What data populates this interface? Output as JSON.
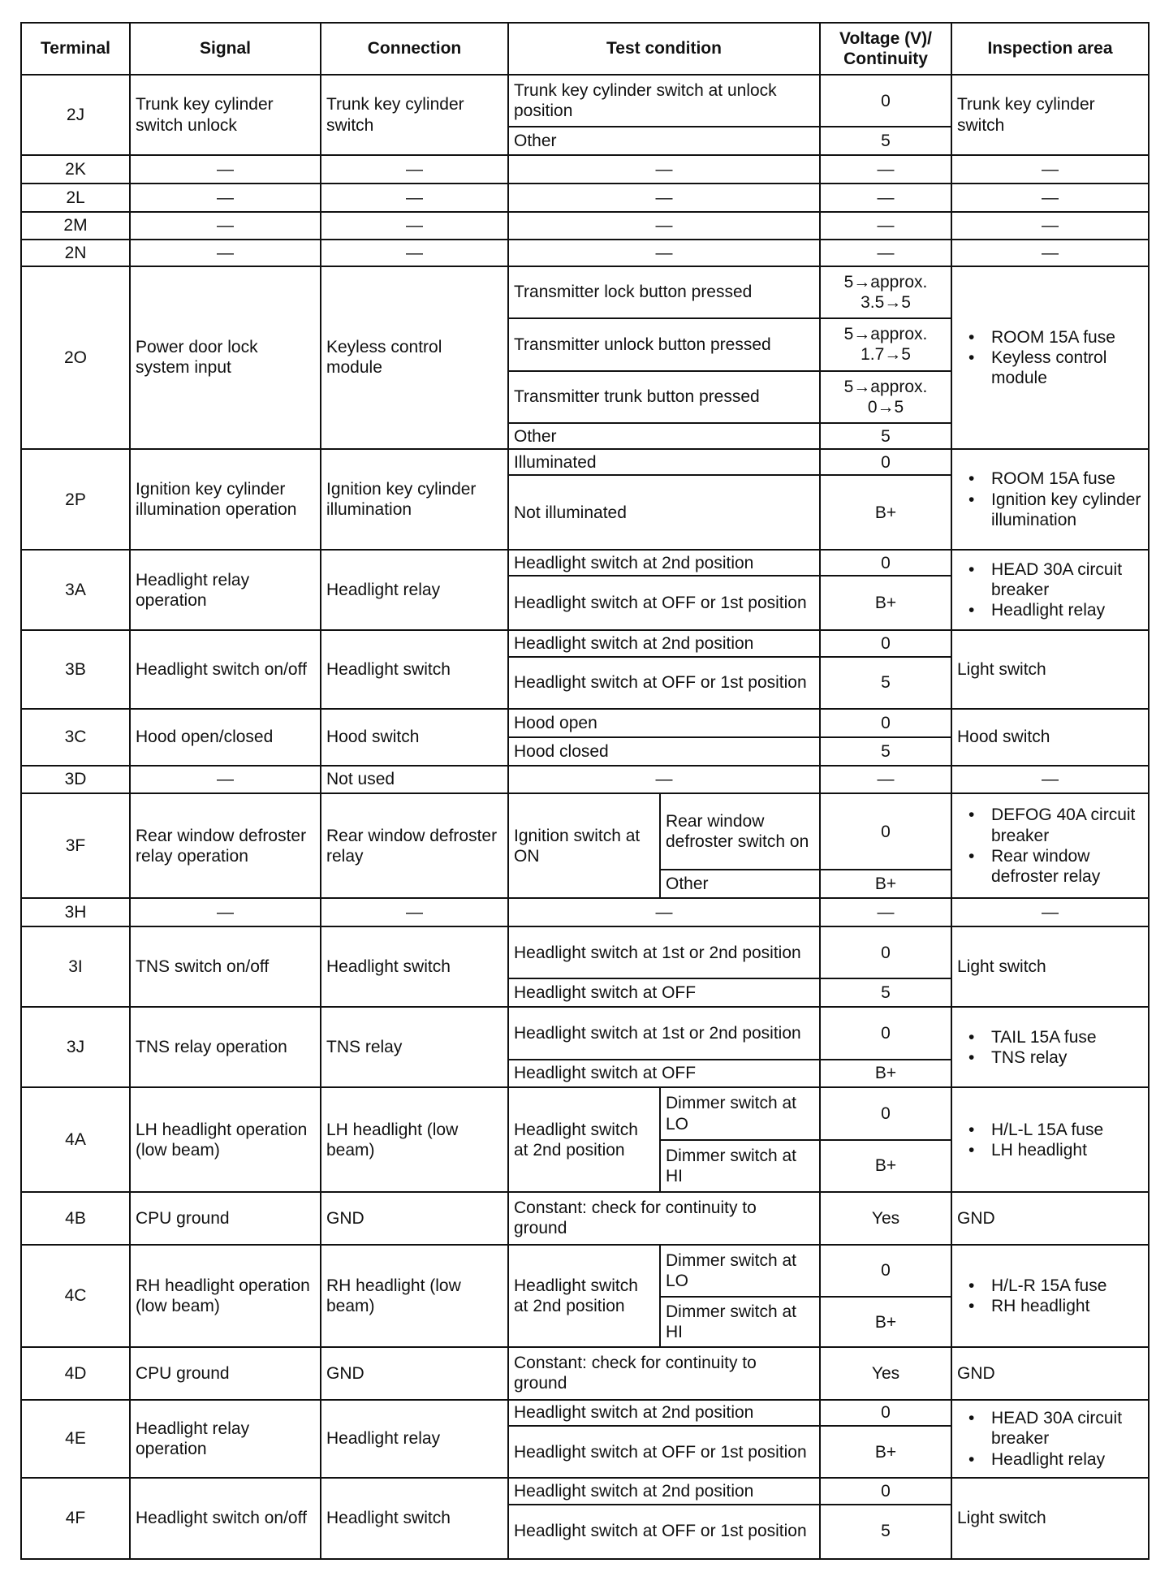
{
  "headers": {
    "terminal": "Terminal",
    "signal": "Signal",
    "connection": "Connection",
    "test_condition": "Test condition",
    "voltage": "Voltage (V)/ Continuity",
    "inspection": "Inspection area"
  },
  "rows": [
    {
      "terminal": "2J",
      "signal": "Trunk key cylinder switch unlock",
      "connection": "Trunk key cylinder switch",
      "conditions": [
        {
          "cond": "Trunk key cylinder switch at unlock position",
          "value": "0"
        },
        {
          "cond": "Other",
          "value": "5"
        }
      ],
      "inspection": "Trunk key cylinder switch"
    },
    {
      "terminal": "2K",
      "signal": "—",
      "connection": "—",
      "conditions": [
        {
          "cond": "—",
          "value": "—"
        }
      ],
      "inspection": "—"
    },
    {
      "terminal": "2L",
      "signal": "—",
      "connection": "—",
      "conditions": [
        {
          "cond": "—",
          "value": "—"
        }
      ],
      "inspection": "—"
    },
    {
      "terminal": "2M",
      "signal": "—",
      "connection": "—",
      "conditions": [
        {
          "cond": "—",
          "value": "—"
        }
      ],
      "inspection": "—"
    },
    {
      "terminal": "2N",
      "signal": "—",
      "connection": "—",
      "conditions": [
        {
          "cond": "—",
          "value": "—"
        }
      ],
      "inspection": "—"
    },
    {
      "terminal": "2O",
      "signal": "Power door lock system input",
      "connection": "Keyless control module",
      "conditions": [
        {
          "cond": "Transmitter lock button pressed",
          "value": "5→approx. 3.5→5"
        },
        {
          "cond": "Transmitter unlock button pressed",
          "value": "5→approx. 1.7→5"
        },
        {
          "cond": "Transmitter trunk button pressed",
          "value": "5→approx. 0→5"
        },
        {
          "cond": "Other",
          "value": "5"
        }
      ],
      "inspection": [
        "ROOM 15A fuse",
        "Keyless control module"
      ]
    },
    {
      "terminal": "2P",
      "signal": "Ignition key cylinder illumination operation",
      "connection": "Ignition key cylinder illumination",
      "conditions": [
        {
          "cond": "Illuminated",
          "value": "0"
        },
        {
          "cond": "Not illuminated",
          "value": "B+"
        }
      ],
      "inspection": [
        "ROOM 15A fuse",
        "Ignition key cylinder illumination"
      ]
    },
    {
      "terminal": "3A",
      "signal": "Headlight relay operation",
      "connection": "Headlight relay",
      "conditions": [
        {
          "cond": "Headlight switch at 2nd position",
          "value": "0"
        },
        {
          "cond": "Headlight switch at OFF or 1st position",
          "value": "B+"
        }
      ],
      "inspection": [
        "HEAD 30A circuit breaker",
        "Headlight relay"
      ]
    },
    {
      "terminal": "3B",
      "signal": "Headlight switch on/off",
      "connection": "Headlight switch",
      "conditions": [
        {
          "cond": "Headlight switch at 2nd position",
          "value": "0"
        },
        {
          "cond": "Headlight switch at OFF or 1st position",
          "value": "5"
        }
      ],
      "inspection": "Light switch"
    },
    {
      "terminal": "3C",
      "signal": "Hood open/closed",
      "connection": "Hood switch",
      "conditions": [
        {
          "cond": "Hood open",
          "value": "0"
        },
        {
          "cond": "Hood closed",
          "value": "5"
        }
      ],
      "inspection": "Hood switch"
    },
    {
      "terminal": "3D",
      "signal": "—",
      "connection": "Not used",
      "conditions": [
        {
          "cond": "—",
          "value": "—"
        }
      ],
      "inspection": "—"
    },
    {
      "terminal": "3F",
      "signal": "Rear window defroster relay operation",
      "connection": "Rear window defroster relay",
      "conditions": [
        {
          "group": "Ignition switch at ON",
          "items": [
            {
              "cond": "Rear window defroster switch on",
              "value": "0"
            },
            {
              "cond": "Other",
              "value": "B+"
            }
          ]
        }
      ],
      "inspection": [
        "DEFOG 40A circuit breaker",
        "Rear window defroster relay"
      ]
    },
    {
      "terminal": "3H",
      "signal": "—",
      "connection": "—",
      "conditions": [
        {
          "cond": "—",
          "value": "—"
        }
      ],
      "inspection": "—"
    },
    {
      "terminal": "3I",
      "signal": "TNS switch on/off",
      "connection": "Headlight switch",
      "conditions": [
        {
          "cond": "Headlight switch at 1st or 2nd position",
          "value": "0"
        },
        {
          "cond": "Headlight switch at OFF",
          "value": "5"
        }
      ],
      "inspection": "Light switch"
    },
    {
      "terminal": "3J",
      "signal": "TNS relay operation",
      "connection": "TNS relay",
      "conditions": [
        {
          "cond": "Headlight switch at 1st or 2nd position",
          "value": "0"
        },
        {
          "cond": "Headlight switch at OFF",
          "value": "B+"
        }
      ],
      "inspection": [
        "TAIL 15A fuse",
        "TNS relay"
      ]
    },
    {
      "terminal": "4A",
      "signal": "LH headlight operation (low beam)",
      "connection": "LH headlight (low beam)",
      "conditions": [
        {
          "group": "Headlight switch at 2nd position",
          "items": [
            {
              "cond": "Dimmer switch at LO",
              "value": "0"
            },
            {
              "cond": "Dimmer switch at HI",
              "value": "B+"
            }
          ]
        }
      ],
      "inspection": [
        "H/L-L 15A fuse",
        "LH headlight"
      ]
    },
    {
      "terminal": "4B",
      "signal": "CPU ground",
      "connection": "GND",
      "conditions": [
        {
          "cond": "Constant: check for continuity to ground",
          "value": "Yes"
        }
      ],
      "inspection": "GND"
    },
    {
      "terminal": "4C",
      "signal": "RH headlight operation (low beam)",
      "connection": "RH headlight (low beam)",
      "conditions": [
        {
          "group": "Headlight switch at 2nd position",
          "items": [
            {
              "cond": "Dimmer switch at LO",
              "value": "0"
            },
            {
              "cond": "Dimmer switch at HI",
              "value": "B+"
            }
          ]
        }
      ],
      "inspection": [
        "H/L-R 15A fuse",
        "RH headlight"
      ]
    },
    {
      "terminal": "4D",
      "signal": "CPU ground",
      "connection": "GND",
      "conditions": [
        {
          "cond": "Constant: check for continuity to ground",
          "value": "Yes"
        }
      ],
      "inspection": "GND"
    },
    {
      "terminal": "4E",
      "signal": "Headlight relay operation",
      "connection": "Headlight relay",
      "conditions": [
        {
          "cond": "Headlight switch at 2nd position",
          "value": "0"
        },
        {
          "cond": "Headlight switch at OFF or 1st position",
          "value": "B+"
        }
      ],
      "inspection": [
        "HEAD 30A circuit breaker",
        "Headlight relay"
      ]
    },
    {
      "terminal": "4F",
      "signal": "Headlight switch on/off",
      "connection": "Headlight switch",
      "conditions": [
        {
          "cond": "Headlight switch at 2nd position",
          "value": "0"
        },
        {
          "cond": "Headlight switch at OFF or 1st position",
          "value": "5"
        }
      ],
      "inspection": "Light switch"
    }
  ]
}
